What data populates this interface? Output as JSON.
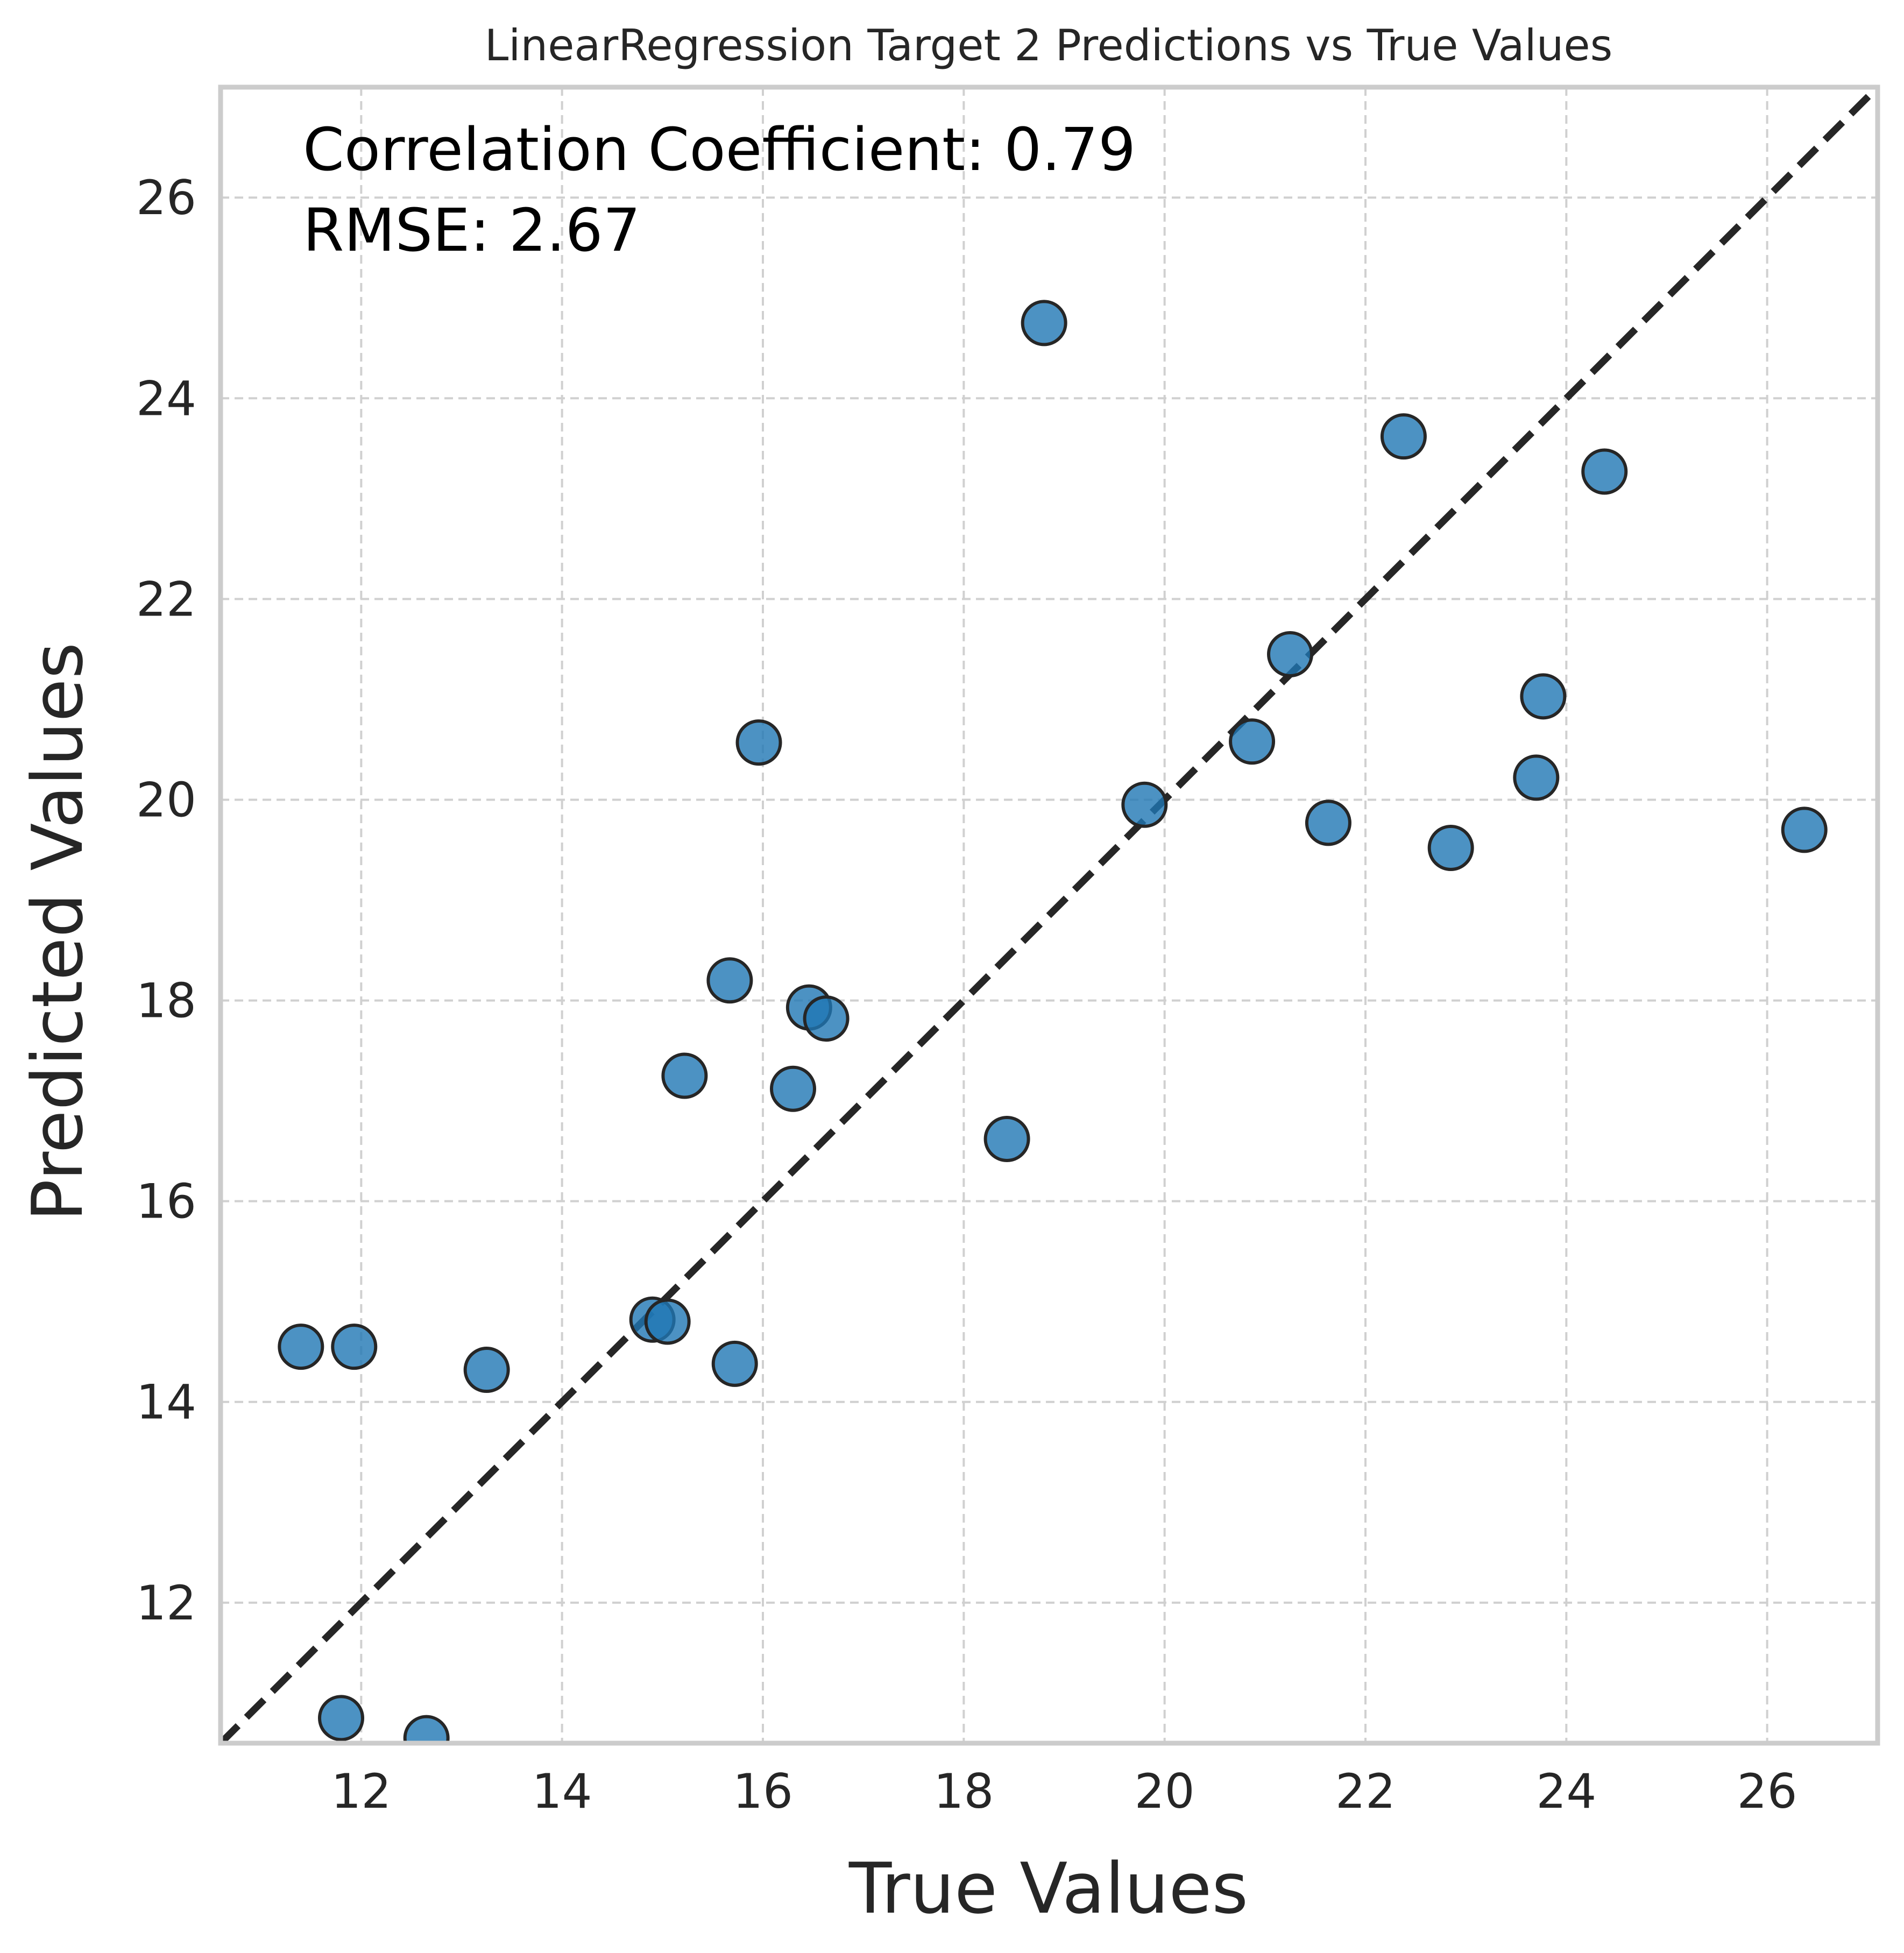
{
  "chart_data": {
    "type": "scatter",
    "title": "LinearRegression Target 2 Predictions vs True Values",
    "xlabel": "True Values",
    "ylabel": "Predicted Values",
    "xlim": [
      10.6,
      27.1
    ],
    "ylim": [
      10.6,
      27.1
    ],
    "xticks": [
      12,
      14,
      16,
      18,
      20,
      22,
      24,
      26
    ],
    "yticks": [
      12,
      14,
      16,
      18,
      20,
      22,
      24,
      26
    ],
    "grid": true,
    "reference_line": "y = x",
    "annotations": [
      "Correlation Coefficient: 0.79",
      "RMSE: 2.67"
    ],
    "point_color": "#1f77b4",
    "edge_color": "#262626",
    "points": [
      {
        "x": 11.4,
        "y": 14.55
      },
      {
        "x": 11.93,
        "y": 14.55
      },
      {
        "x": 11.8,
        "y": 10.85
      },
      {
        "x": 12.65,
        "y": 10.65
      },
      {
        "x": 13.25,
        "y": 14.32
      },
      {
        "x": 14.9,
        "y": 14.82
      },
      {
        "x": 15.05,
        "y": 14.8
      },
      {
        "x": 15.22,
        "y": 17.25
      },
      {
        "x": 15.67,
        "y": 18.2
      },
      {
        "x": 15.72,
        "y": 14.38
      },
      {
        "x": 15.96,
        "y": 20.57
      },
      {
        "x": 16.3,
        "y": 17.12
      },
      {
        "x": 16.46,
        "y": 17.93
      },
      {
        "x": 16.63,
        "y": 17.82
      },
      {
        "x": 18.43,
        "y": 16.62
      },
      {
        "x": 18.8,
        "y": 24.75
      },
      {
        "x": 19.8,
        "y": 19.95
      },
      {
        "x": 20.87,
        "y": 20.58
      },
      {
        "x": 21.25,
        "y": 21.45
      },
      {
        "x": 21.63,
        "y": 19.77
      },
      {
        "x": 22.38,
        "y": 23.62
      },
      {
        "x": 22.85,
        "y": 19.52
      },
      {
        "x": 23.7,
        "y": 20.22
      },
      {
        "x": 23.77,
        "y": 21.03
      },
      {
        "x": 24.38,
        "y": 23.27
      },
      {
        "x": 26.37,
        "y": 19.7
      }
    ]
  }
}
